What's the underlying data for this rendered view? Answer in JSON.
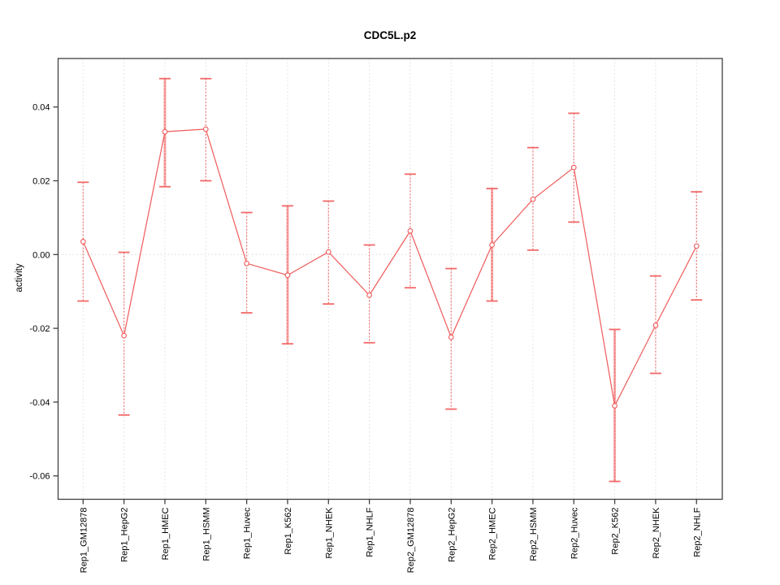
{
  "chart_data": {
    "type": "line",
    "title": "CDC5L.p2",
    "xlabel": "",
    "ylabel": "activity",
    "ylim": [
      -0.066,
      0.052
    ],
    "y_tick_values": [
      0.04,
      0.02,
      0.0,
      -0.02,
      -0.04,
      -0.06
    ],
    "y_tick_labels": [
      "0.04",
      "0.02",
      "0.00",
      "-0.02",
      "-0.04",
      "-0.06"
    ],
    "grid": {
      "vertical_gridlines": true,
      "horizontal_zero_line_only": true,
      "style": "dotted"
    },
    "legend": "none",
    "categories": [
      "Rep1_GM12878",
      "Rep1_HepG2",
      "Rep1_HMEC",
      "Rep1_HSMM",
      "Rep1_Huvec",
      "Rep1_K562",
      "Rep1_NHEK",
      "Rep1_NHLF",
      "Rep2_GM12878",
      "Rep2_HepG2",
      "Rep2_HMEC",
      "Rep2_HSMM",
      "Rep2_Huvec",
      "Rep2_K562",
      "Rep2_NHEK",
      "Rep2_NHLF"
    ],
    "series": [
      {
        "name": "activity",
        "marker": "open-circle",
        "values": [
          0.0035,
          -0.022,
          0.0333,
          0.034,
          -0.0024,
          -0.0056,
          0.0007,
          -0.011,
          0.0064,
          -0.0224,
          0.0026,
          0.015,
          0.0236,
          -0.041,
          -0.0192,
          0.0023
        ],
        "ci_high": [
          0.0196,
          0.0006,
          0.0477,
          0.0477,
          0.0114,
          0.0132,
          0.0145,
          0.0026,
          0.0218,
          -0.0038,
          0.0179,
          0.029,
          0.0383,
          -0.0203,
          -0.0058,
          0.017
        ],
        "ci_low": [
          -0.0126,
          -0.0435,
          0.0184,
          0.02,
          -0.0158,
          -0.0242,
          -0.0134,
          -0.0239,
          -0.009,
          -0.0419,
          -0.0126,
          0.0012,
          0.0088,
          -0.0615,
          -0.0322,
          -0.0123
        ]
      }
    ],
    "wide_error_bar_indices": [
      2,
      5,
      10,
      13
    ],
    "colors": {
      "line": "#F05A5A",
      "marker_stroke": "#F05A5A",
      "marker_fill": "#FFFFFF",
      "error_cap": "#F26868",
      "error_shaft_thin": "#EE6A6A",
      "error_shaft_wide": "#F7AAAA",
      "grid": "#DCDCDC",
      "zero_line": "#D8D8D8",
      "axis": "#404040",
      "text": "#000000",
      "background": "#FFFFFF"
    }
  }
}
